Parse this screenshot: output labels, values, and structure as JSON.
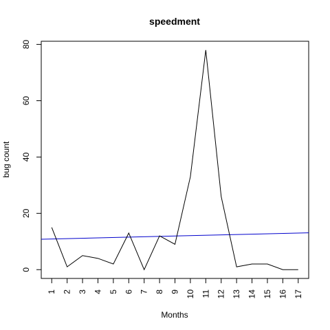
{
  "chart_data": {
    "type": "line",
    "title": "speedment",
    "xlabel": "Months",
    "ylabel": "bug count",
    "x": [
      1,
      2,
      3,
      4,
      5,
      6,
      7,
      8,
      9,
      10,
      11,
      12,
      13,
      14,
      15,
      16,
      17
    ],
    "x_tick_labels": [
      "1",
      "2",
      "3",
      "4",
      "5",
      "6",
      "7",
      "8",
      "9",
      "10",
      "11",
      "12",
      "13",
      "14",
      "15",
      "16",
      "17"
    ],
    "y_tick_labels": [
      "0",
      "20",
      "40",
      "60",
      "80"
    ],
    "xlim": [
      0.32,
      17.68
    ],
    "ylim": [
      -3.12,
      81.12
    ],
    "series": [
      {
        "color": "#000000",
        "values": [
          15,
          1,
          5,
          4,
          2,
          13,
          0,
          12,
          9,
          33,
          78,
          26,
          1,
          2,
          2,
          0,
          0
        ]
      }
    ],
    "trend_line": {
      "color": "#0000cc",
      "y_at_xlim": [
        10.8,
        13.1
      ]
    },
    "grid": false,
    "legend": "none"
  }
}
